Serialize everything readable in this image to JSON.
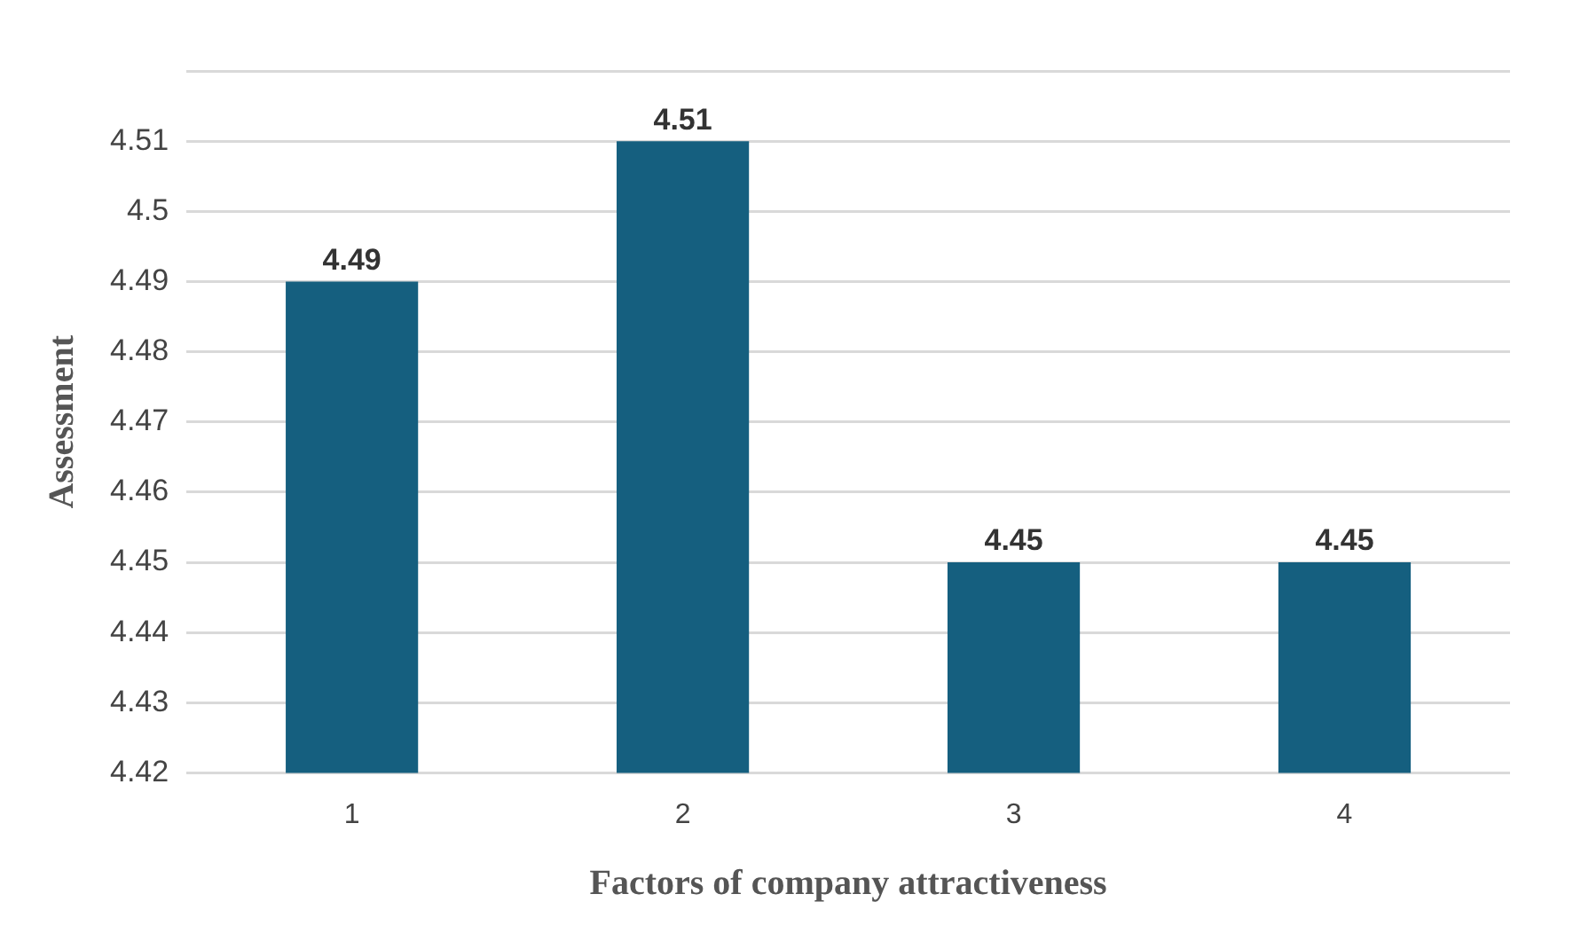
{
  "chart_data": {
    "type": "bar",
    "xlabel": "Factors of company attractiveness",
    "ylabel": "Assessment",
    "categories": [
      "1",
      "2",
      "3",
      "4"
    ],
    "values": [
      4.49,
      4.51,
      4.45,
      4.45
    ],
    "color": "#155f7f",
    "ylim": [
      4.42,
      4.52
    ],
    "yticks": [
      4.42,
      4.43,
      4.44,
      4.45,
      4.46,
      4.47,
      4.48,
      4.49,
      4.5,
      4.51,
      {
        "value": 4.52,
        "label": null
      }
    ],
    "grid": "y",
    "data_labels": true,
    "legend": false
  }
}
